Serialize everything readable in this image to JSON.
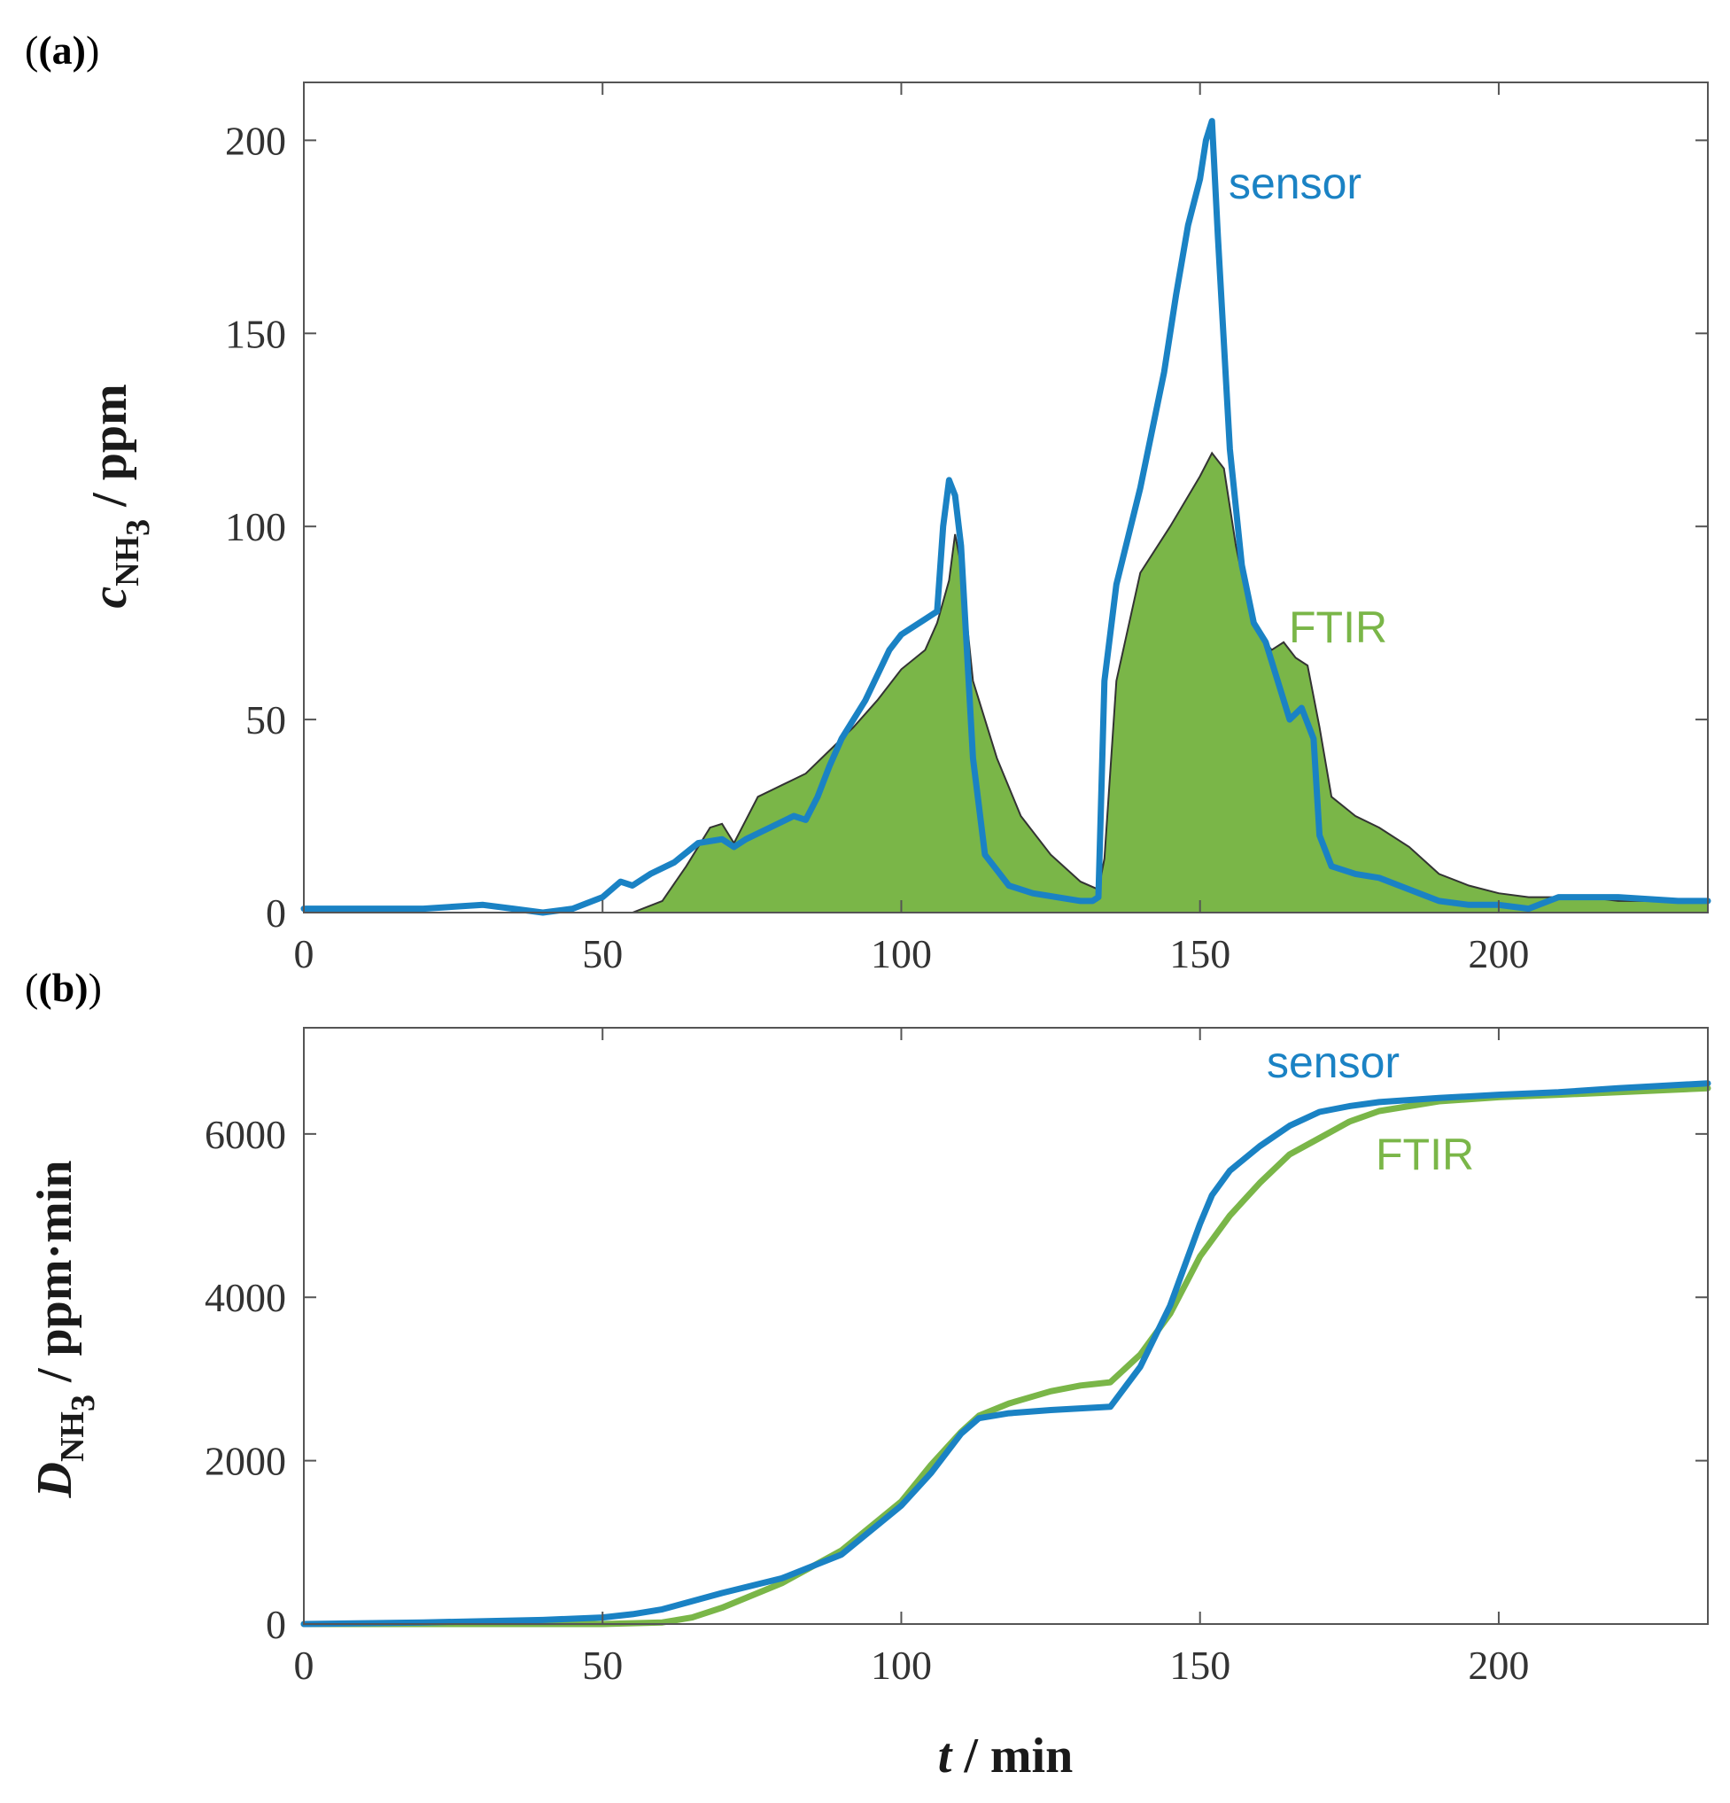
{
  "chart_data": [
    {
      "panel": "(a)",
      "type": "line",
      "xlabel": "t / min",
      "ylabel_var": "c",
      "ylabel_sub": "NH",
      "ylabel_subsub": "3",
      "ylabel_unit": " / ppm",
      "xlim": [
        0,
        235
      ],
      "ylim": [
        0,
        215
      ],
      "xticks": [
        0,
        50,
        100,
        150,
        200
      ],
      "yticks": [
        0,
        50,
        100,
        150,
        200
      ],
      "grid": false,
      "series": [
        {
          "name": "FTIR",
          "style": "filled-area",
          "color": "#7ab648",
          "edge_color": "#333333",
          "x": [
            0,
            30,
            45,
            55,
            60,
            64,
            68,
            70,
            72,
            76,
            80,
            84,
            88,
            92,
            96,
            100,
            104,
            106,
            108,
            109,
            110,
            112,
            116,
            120,
            125,
            130,
            133,
            134,
            136,
            140,
            145,
            150,
            152,
            154,
            156,
            158,
            160,
            162,
            164,
            166,
            168,
            170,
            172,
            176,
            180,
            185,
            190,
            195,
            200,
            205,
            210,
            215,
            220,
            225,
            230,
            235
          ],
          "y": [
            0,
            0,
            0,
            0,
            3,
            12,
            22,
            23,
            18,
            30,
            33,
            36,
            42,
            48,
            55,
            63,
            68,
            75,
            86,
            98,
            90,
            60,
            40,
            25,
            15,
            8,
            6,
            14,
            60,
            88,
            100,
            113,
            119,
            115,
            95,
            80,
            72,
            68,
            70,
            66,
            64,
            48,
            30,
            25,
            22,
            17,
            10,
            7,
            5,
            4,
            4,
            4,
            3,
            3,
            3,
            3
          ]
        },
        {
          "name": "sensor",
          "style": "line",
          "color": "#1a82c4",
          "x": [
            0,
            20,
            30,
            35,
            40,
            45,
            50,
            53,
            55,
            58,
            62,
            66,
            70,
            72,
            74,
            78,
            82,
            84,
            86,
            88,
            90,
            94,
            98,
            100,
            104,
            106,
            107,
            108,
            109,
            110,
            112,
            114,
            118,
            122,
            126,
            130,
            132,
            133,
            134,
            136,
            140,
            144,
            146,
            148,
            150,
            151,
            152,
            153,
            155,
            157,
            159,
            161,
            163,
            165,
            167,
            169,
            170,
            172,
            176,
            180,
            185,
            190,
            195,
            200,
            205,
            210,
            220,
            230,
            235
          ],
          "y": [
            1,
            1,
            2,
            1,
            0,
            1,
            4,
            8,
            7,
            10,
            13,
            18,
            19,
            17,
            19,
            22,
            25,
            24,
            30,
            38,
            45,
            55,
            68,
            72,
            76,
            78,
            100,
            112,
            108,
            95,
            40,
            15,
            7,
            5,
            4,
            3,
            3,
            4,
            60,
            85,
            110,
            140,
            160,
            178,
            190,
            200,
            205,
            175,
            120,
            90,
            75,
            70,
            60,
            50,
            53,
            45,
            20,
            12,
            10,
            9,
            6,
            3,
            2,
            2,
            1,
            4,
            4,
            3,
            3
          ]
        }
      ],
      "annotations": [
        {
          "text": "sensor",
          "color": "#1a82c4"
        },
        {
          "text": "FTIR",
          "color": "#7ab648"
        }
      ]
    },
    {
      "panel": "(b)",
      "type": "line",
      "xlabel": "t / min",
      "ylabel_var": "D",
      "ylabel_sub": "NH",
      "ylabel_subsub": "3",
      "ylabel_unit": " / ppm·min",
      "xlim": [
        0,
        235
      ],
      "ylim": [
        0,
        7300
      ],
      "xticks": [
        0,
        50,
        100,
        150,
        200
      ],
      "yticks": [
        0,
        2000,
        4000,
        6000
      ],
      "grid": false,
      "series": [
        {
          "name": "FTIR",
          "color": "#7ab648",
          "x": [
            0,
            20,
            40,
            50,
            60,
            65,
            70,
            80,
            90,
            100,
            105,
            110,
            113,
            118,
            125,
            130,
            135,
            140,
            145,
            150,
            155,
            160,
            165,
            170,
            175,
            180,
            190,
            200,
            210,
            220,
            235
          ],
          "y": [
            0,
            0,
            0,
            0,
            20,
            80,
            200,
            500,
            900,
            1500,
            1950,
            2350,
            2550,
            2700,
            2850,
            2920,
            2960,
            3300,
            3800,
            4500,
            5000,
            5400,
            5750,
            5950,
            6150,
            6280,
            6400,
            6450,
            6480,
            6510,
            6560
          ]
        },
        {
          "name": "sensor",
          "color": "#1a82c4",
          "x": [
            0,
            20,
            40,
            50,
            55,
            60,
            70,
            80,
            90,
            100,
            105,
            110,
            113,
            118,
            125,
            130,
            135,
            140,
            145,
            150,
            152,
            155,
            160,
            165,
            170,
            175,
            180,
            190,
            200,
            210,
            220,
            235
          ],
          "y": [
            0,
            20,
            50,
            80,
            120,
            180,
            380,
            560,
            850,
            1450,
            1850,
            2330,
            2520,
            2580,
            2620,
            2640,
            2660,
            3150,
            3900,
            4900,
            5250,
            5550,
            5850,
            6100,
            6270,
            6340,
            6390,
            6440,
            6480,
            6510,
            6560,
            6620
          ]
        }
      ],
      "annotations": [
        {
          "text": "sensor",
          "color": "#1a82c4"
        },
        {
          "text": "FTIR",
          "color": "#7ab648"
        }
      ]
    }
  ]
}
